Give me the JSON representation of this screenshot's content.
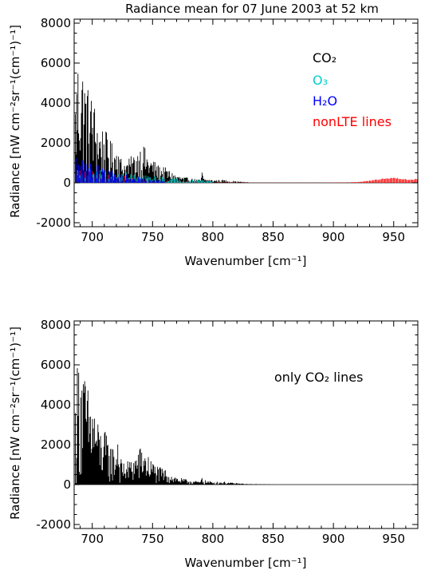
{
  "chart_data": [
    {
      "type": "line",
      "title": "Radiance mean for 07 June 2003 at 52 km",
      "xlabel": "Wavenumber [cm⁻¹]",
      "ylabel": "Radiance [nW cm⁻²sr⁻¹(cm⁻¹)⁻¹]",
      "xlim": [
        685,
        970
      ],
      "ylim": [
        -2200,
        8200
      ],
      "x_ticks": [
        700,
        750,
        800,
        850,
        900,
        950
      ],
      "y_ticks": [
        -2000,
        0,
        2000,
        4000,
        6000,
        8000
      ],
      "grid": false,
      "legend_position": "top-right",
      "legend": [
        {
          "name": "CO₂",
          "color": "#000000"
        },
        {
          "name": "O₃",
          "color": "#00d0d0"
        },
        {
          "name": "H₂O",
          "color": "#0000ff"
        },
        {
          "name": "nonLTE lines",
          "color": "#ff0000"
        }
      ],
      "series": [
        {
          "name": "CO₂",
          "color": "#000000",
          "envelope_x": [
            686,
            688,
            690,
            692,
            695,
            698,
            700,
            703,
            706,
            710,
            714,
            718,
            720,
            721,
            722,
            725,
            730,
            735,
            740,
            742,
            745,
            750,
            755,
            760,
            765,
            770,
            775,
            780,
            785,
            790,
            791,
            792,
            795,
            800,
            805,
            810,
            815,
            820,
            825,
            830
          ],
          "envelope_y": [
            4500,
            6500,
            6600,
            6100,
            5200,
            4600,
            4500,
            3800,
            2900,
            2800,
            2200,
            1900,
            1800,
            3900,
            1500,
            1200,
            1200,
            1500,
            1900,
            2000,
            1600,
            1200,
            900,
            800,
            600,
            400,
            300,
            250,
            200,
            150,
            700,
            250,
            200,
            150,
            150,
            150,
            100,
            80,
            50,
            30
          ]
        },
        {
          "name": "O₃",
          "color": "#00d0d0",
          "envelope_x": [
            686,
            690,
            700,
            710,
            720,
            730,
            740,
            750,
            760,
            770,
            780,
            790,
            800
          ],
          "envelope_y": [
            600,
            700,
            800,
            600,
            500,
            500,
            400,
            350,
            300,
            250,
            250,
            200,
            100
          ]
        },
        {
          "name": "H₂O",
          "color": "#0000ff",
          "envelope_x": [
            686,
            690,
            700,
            710,
            720,
            730,
            740,
            750,
            760
          ],
          "envelope_y": [
            1500,
            1200,
            1000,
            800,
            500,
            400,
            300,
            200,
            100
          ]
        },
        {
          "name": "nonLTE lines",
          "color": "#ff0000",
          "envelope_x": [
            686,
            700,
            720,
            740,
            760,
            780,
            800,
            820,
            840,
            860,
            880,
            900,
            920,
            925,
            930,
            935,
            940,
            945,
            950,
            955,
            960,
            965,
            970
          ],
          "envelope_y": [
            800,
            600,
            400,
            300,
            200,
            100,
            30,
            20,
            10,
            10,
            10,
            20,
            40,
            80,
            120,
            170,
            220,
            250,
            260,
            240,
            200,
            160,
            220
          ]
        }
      ]
    },
    {
      "type": "line",
      "title": "",
      "xlabel": "Wavenumber [cm⁻¹]",
      "ylabel": "Radiance [nW cm⁻²sr⁻¹(cm⁻¹)⁻¹]",
      "xlim": [
        685,
        970
      ],
      "ylim": [
        -2200,
        8200
      ],
      "x_ticks": [
        700,
        750,
        800,
        850,
        900,
        950
      ],
      "y_ticks": [
        -2000,
        0,
        2000,
        4000,
        6000,
        8000
      ],
      "grid": false,
      "annotation": "only CO₂ lines",
      "series": [
        {
          "name": "CO₂",
          "color": "#000000",
          "envelope_x": [
            686,
            688,
            690,
            692,
            695,
            698,
            700,
            703,
            706,
            710,
            714,
            718,
            720,
            721,
            722,
            725,
            730,
            735,
            740,
            742,
            745,
            750,
            755,
            760,
            765,
            770,
            775,
            780,
            785,
            790,
            791,
            792,
            795,
            800,
            805,
            810,
            815,
            820,
            825,
            830,
            840,
            850
          ],
          "envelope_y": [
            4500,
            6500,
            6600,
            6100,
            5200,
            4600,
            4500,
            3800,
            2900,
            2800,
            2200,
            1900,
            1800,
            3900,
            1500,
            1200,
            1200,
            1500,
            1900,
            2000,
            1600,
            1200,
            900,
            800,
            600,
            400,
            300,
            250,
            200,
            150,
            700,
            250,
            200,
            150,
            150,
            150,
            100,
            80,
            50,
            30,
            20,
            10
          ]
        }
      ]
    }
  ]
}
